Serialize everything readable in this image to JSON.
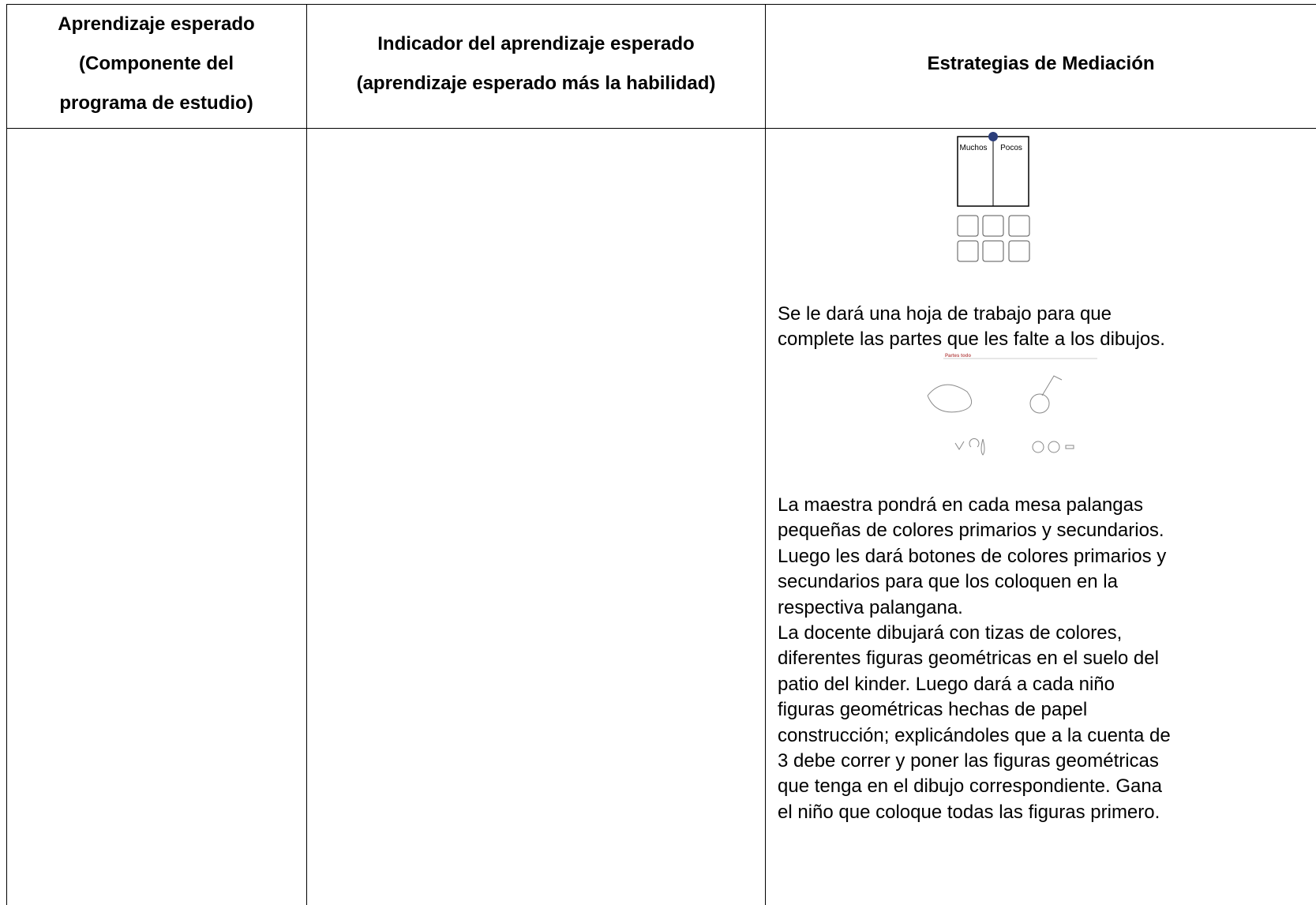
{
  "table": {
    "header": [
      {
        "lines": [
          "Aprendizaje esperado",
          "(Componente del",
          "programa de estudio)"
        ]
      },
      {
        "lines": [
          "Indicador del aprendizaje esperado",
          "(aprendizaje esperado más la habilidad)"
        ]
      },
      {
        "lines": [
          "Estrategias de Mediación"
        ]
      }
    ],
    "worksheet_1": {
      "left_label": "Muchos",
      "right_label": "Pocos"
    },
    "paragraph_1": [
      "Se le dará una hoja de trabajo para que",
      "complete las partes que les falte a los dibujos."
    ],
    "worksheet_2": {
      "title": "Partes todo"
    },
    "paragraph_2": [
      "La maestra pondrá en cada mesa palangas",
      "pequeñas de colores primarios y secundarios.",
      "Luego les dará botones de colores primarios y",
      "secundarios para que los coloquen en la",
      "respectiva palangana."
    ],
    "paragraph_3": [
      "La docente dibujará con tizas de colores,",
      "diferentes figuras geométricas en el suelo del",
      "patio del kinder.  Luego dará a cada niño",
      "figuras geométricas hechas de papel",
      "construcción; explicándoles que a la cuenta de",
      "3 debe correr y poner las figuras geométricas",
      "que tenga en el dibujo correspondiente.  Gana",
      "el niño que coloque todas las figuras primero."
    ]
  }
}
